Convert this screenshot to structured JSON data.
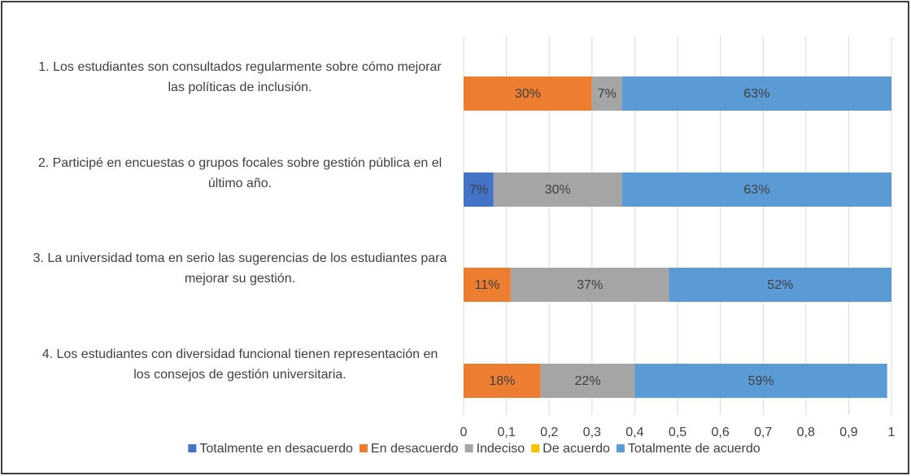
{
  "chart_data": {
    "type": "stacked-bar-horizontal",
    "categories": [
      "1. Los estudiantes son consultados regularmente sobre cómo mejorar las políticas de inclusión.",
      "2. Participé en encuestas o grupos focales sobre gestión pública en el último año.",
      "3. La universidad toma en serio las sugerencias de los estudiantes para mejorar su gestión.",
      "4. Los estudiantes con diversidad funcional tienen representación en los consejos de gestión universitaria."
    ],
    "series": [
      {
        "name": "Totalmente en desacuerdo",
        "color": "#4472c4",
        "values": [
          0,
          0.07,
          0,
          0
        ],
        "value_labels": [
          null,
          "7%",
          null,
          null
        ]
      },
      {
        "name": "En desacuerdo",
        "color": "#ed7d31",
        "values": [
          0.3,
          0,
          0.11,
          0.18
        ],
        "value_labels": [
          "30%",
          null,
          "11%",
          "18%"
        ]
      },
      {
        "name": "Indeciso",
        "color": "#a5a5a5",
        "values": [
          0.07,
          0.3,
          0.37,
          0.22
        ],
        "value_labels": [
          "7%",
          "30%",
          "37%",
          "22%"
        ]
      },
      {
        "name": "De acuerdo",
        "color": "#ffc000",
        "values": [
          0,
          0,
          0,
          0
        ],
        "value_labels": [
          null,
          null,
          null,
          null
        ]
      },
      {
        "name": "Totalmente de acuerdo",
        "color": "#5b9bd5",
        "values": [
          0.63,
          0.63,
          0.52,
          0.59
        ],
        "value_labels": [
          "63%",
          "63%",
          "52%",
          "59%"
        ]
      }
    ],
    "xlim": [
      0,
      1
    ],
    "xticks": [
      0,
      {
        "value": 0.1,
        "label": "0,1"
      },
      {
        "value": 0.2,
        "label": "0,2"
      },
      {
        "value": 0.3,
        "label": "0,3"
      },
      {
        "value": 0.4,
        "label": "0,4"
      },
      {
        "value": 0.5,
        "label": "0,5"
      },
      {
        "value": 0.6,
        "label": "0,6"
      },
      {
        "value": 0.7,
        "label": "0,7"
      },
      {
        "value": 0.8,
        "label": "0,8"
      },
      {
        "value": 0.9,
        "label": "0,9"
      },
      1
    ],
    "grid": true,
    "legend": "bottom"
  }
}
